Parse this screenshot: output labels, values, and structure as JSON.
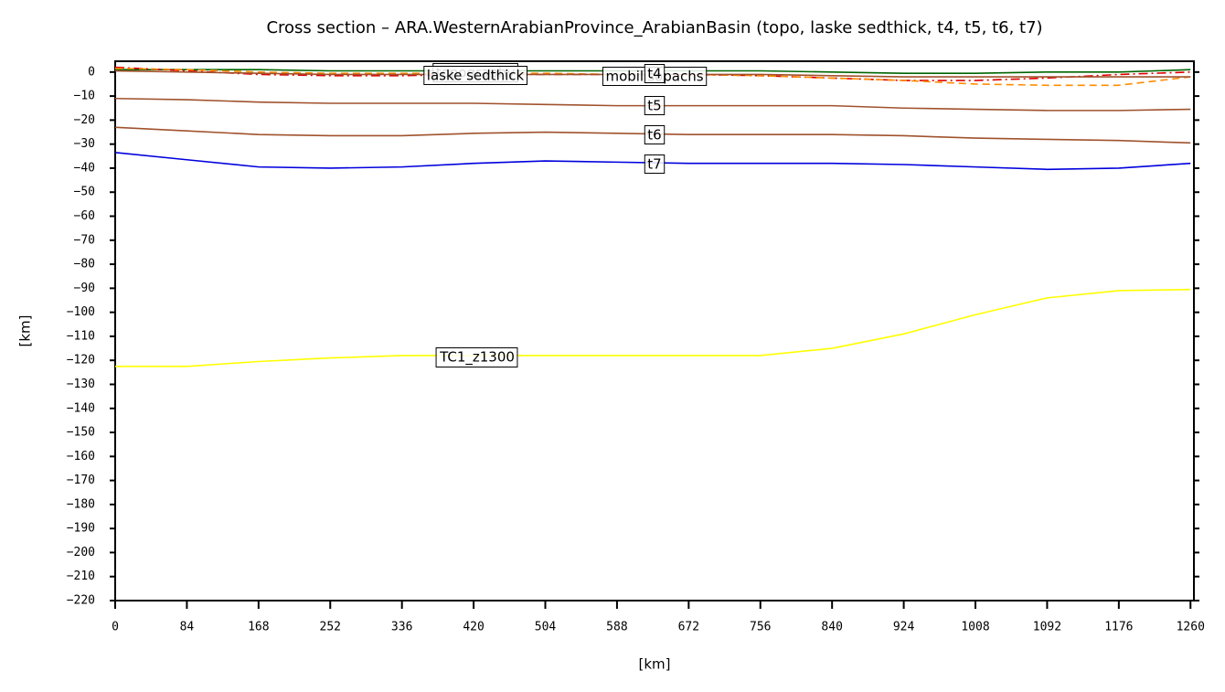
{
  "chart_data": {
    "type": "line",
    "title": "Cross section – ARA.WesternArabianProvince_ArabianBasin (topo, laske sedthick, t4, t5, t6, t7)",
    "xlabel": "[km]",
    "ylabel": "[km]",
    "x": [
      0,
      84,
      168,
      252,
      336,
      420,
      504,
      588,
      672,
      756,
      840,
      924,
      1008,
      1092,
      1176,
      1260
    ],
    "xlim": [
      0,
      1264
    ],
    "ylim": [
      -220,
      4.5
    ],
    "xticks": [
      0,
      84,
      168,
      252,
      336,
      420,
      504,
      588,
      672,
      756,
      840,
      924,
      1008,
      1092,
      1176,
      1260
    ],
    "yticks": [
      0,
      {
        "value": -10,
        "label": "−10"
      },
      {
        "value": -20,
        "label": "−20"
      },
      {
        "value": -30,
        "label": "−30"
      },
      {
        "value": -40,
        "label": "−40"
      },
      {
        "value": -50,
        "label": "−50"
      },
      {
        "value": -60,
        "label": "−60"
      },
      {
        "value": -70,
        "label": "−70"
      },
      {
        "value": -80,
        "label": "−80"
      },
      {
        "value": -90,
        "label": "−90"
      },
      {
        "value": -100,
        "label": "−100"
      },
      {
        "value": -110,
        "label": "−110"
      },
      {
        "value": -120,
        "label": "−120"
      },
      {
        "value": -130,
        "label": "−130"
      },
      {
        "value": -140,
        "label": "−140"
      },
      {
        "value": -150,
        "label": "−150"
      },
      {
        "value": -160,
        "label": "−160"
      },
      {
        "value": -170,
        "label": "−170"
      },
      {
        "value": -180,
        "label": "−180"
      },
      {
        "value": -190,
        "label": "−190"
      },
      {
        "value": -200,
        "label": "−200"
      },
      {
        "value": -210,
        "label": "−210"
      },
      {
        "value": -220,
        "label": "−220"
      }
    ],
    "series": [
      {
        "name": "topography",
        "color": "#006400",
        "dash": "solid",
        "values": [
          1,
          1,
          1,
          0.5,
          0.5,
          0.5,
          0.5,
          0.5,
          0.5,
          0.5,
          0,
          -0.5,
          -0.5,
          0,
          0,
          1
        ]
      },
      {
        "name": "laske sedthick",
        "color": "#e00000",
        "dash": "dashdot",
        "values": [
          2,
          0.5,
          -1,
          -1.5,
          -1.5,
          -1,
          -1,
          -1,
          -1,
          -1.5,
          -2.5,
          -3.5,
          -3.5,
          -2.5,
          -1,
          0
        ]
      },
      {
        "name": "mobilisopachs",
        "color": "#ff8c00",
        "dash": "dashed",
        "values": [
          1.5,
          1,
          0,
          -0.5,
          -0.5,
          -0.5,
          -0.5,
          -1,
          -1,
          -1.5,
          -2.5,
          -3.5,
          -5,
          -5.5,
          -5.5,
          -2
        ]
      },
      {
        "name": "t4",
        "color": "#a0522d",
        "dash": "solid",
        "values": [
          0.5,
          0,
          -0.5,
          -1,
          -1,
          -1,
          -1,
          -1,
          -1,
          -1,
          -1.5,
          -2,
          -2,
          -2,
          -2,
          -2
        ]
      },
      {
        "name": "t5",
        "color": "#a0522d",
        "dash": "solid",
        "values": [
          -11,
          -11.5,
          -12.5,
          -13,
          -13,
          -13,
          -13.5,
          -14,
          -14,
          -14,
          -14,
          -15,
          -15.5,
          -16,
          -16,
          -15.5
        ]
      },
      {
        "name": "t6",
        "color": "#a0522d",
        "dash": "solid",
        "values": [
          -23,
          -24.5,
          -26,
          -26.5,
          -26.5,
          -25.5,
          -25,
          -25.5,
          -26,
          -26,
          -26,
          -26.5,
          -27.5,
          -28,
          -28.5,
          -29.5
        ]
      },
      {
        "name": "t7",
        "color": "#0000dd",
        "dash": "solid",
        "values": [
          -33.5,
          -36.5,
          -39.5,
          -40,
          -39.5,
          -38,
          -37,
          -37.5,
          -38,
          -38,
          -38,
          -38.5,
          -39.5,
          -40.5,
          -40,
          -38
        ]
      },
      {
        "name": "TC1_z1300",
        "color": "#ffff00",
        "dash": "solid",
        "values": [
          -122.5,
          -122.5,
          -120.5,
          -119,
          -118,
          -118,
          -118,
          -118,
          -118,
          -118,
          -115,
          -109,
          -101,
          -94,
          -91,
          -90.5
        ]
      }
    ]
  }
}
